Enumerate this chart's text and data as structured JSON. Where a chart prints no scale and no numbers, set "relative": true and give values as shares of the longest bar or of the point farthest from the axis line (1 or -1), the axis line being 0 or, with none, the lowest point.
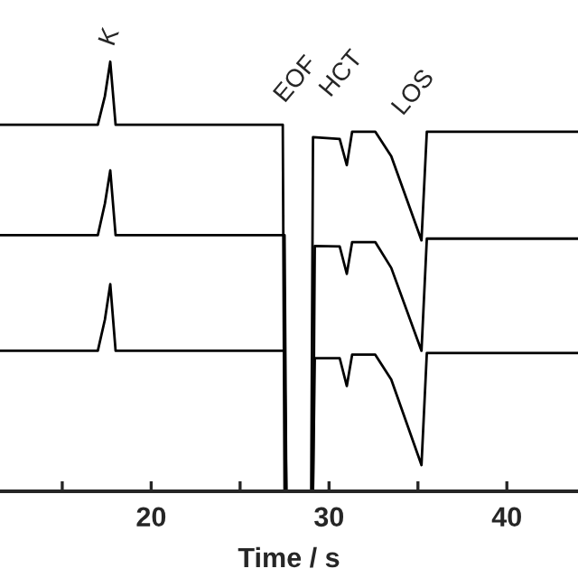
{
  "chart_data": {
    "type": "line",
    "relative": true,
    "xlabel": "Time / s",
    "xlim": [
      11.5,
      44
    ],
    "xticks": [
      {
        "value": 15,
        "label": null
      },
      20,
      {
        "value": 25,
        "label": null
      },
      30,
      {
        "value": 35,
        "label": null
      },
      40
    ],
    "grid": false,
    "marker": "none",
    "line_style": "solid",
    "annotations": [
      {
        "text": "K",
        "x": 17.7,
        "y": 1.0
      },
      {
        "text": "EOF",
        "x": 29.0,
        "y": 0.824
      },
      {
        "text": "HCT",
        "x": 31.0,
        "y": 0.837
      },
      "LOS"
    ],
    "series": [
      {
        "color": "#000000",
        "x": [
          11.5,
          17.0,
          17.4,
          17.7,
          18.0,
          27.4,
          27.5,
          29.0,
          29.1,
          30.6,
          31.0,
          31.3,
          32.6,
          33.5,
          35.2,
          35.5,
          44
        ],
        "values": [
          0.853,
          0.853,
          0.92,
          1.0,
          0.853,
          0.853,
          0,
          0,
          0.824,
          0.82,
          0.759,
          0.837,
          0.837,
          0.78,
          0.584,
          0.837,
          0.837
        ]
      },
      {
        "color": "#000000",
        "x": [
          11.5,
          17.0,
          17.4,
          17.7,
          18.0,
          27.5,
          27.6,
          29.1,
          29.2,
          30.6,
          31.0,
          31.3,
          32.6,
          33.5,
          35.2,
          35.5,
          44
        ],
        "values": [
          0.596,
          0.596,
          0.67,
          0.747,
          0.596,
          0.596,
          0,
          0,
          0.571,
          0.57,
          0.506,
          0.58,
          0.58,
          0.52,
          0.327,
          0.588,
          0.588
        ]
      },
      {
        "color": "#000000",
        "x": [
          11.5,
          17.0,
          17.4,
          17.7,
          18.0,
          27.5,
          27.6,
          29.1,
          29.2,
          30.6,
          31.0,
          31.3,
          32.6,
          33.5,
          35.2,
          35.5,
          44
        ],
        "values": [
          0.327,
          0.327,
          0.4,
          0.482,
          0.327,
          0.327,
          0,
          0,
          0.31,
          0.31,
          0.245,
          0.318,
          0.318,
          0.26,
          0.061,
          0.322,
          0.322
        ]
      }
    ]
  }
}
